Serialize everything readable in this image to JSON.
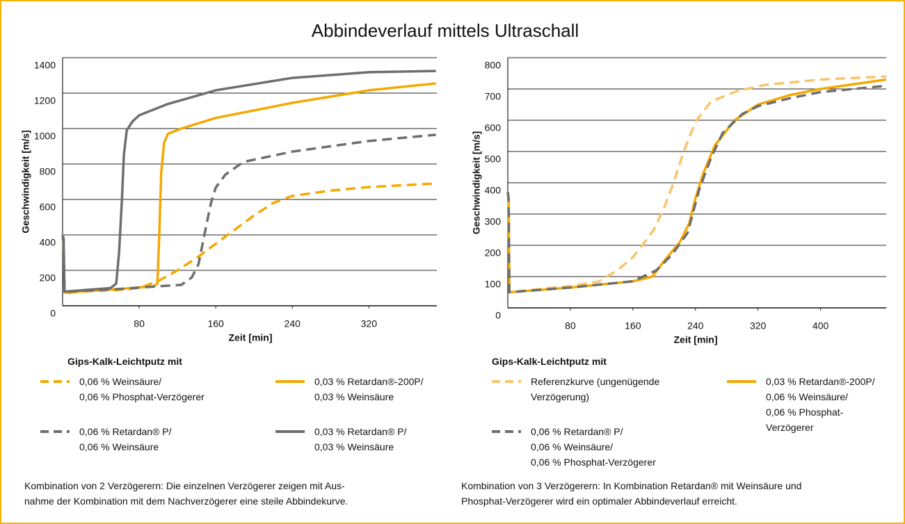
{
  "title": "Abbindeverlauf mittels Ultraschall",
  "chart_data": [
    {
      "type": "line",
      "x_label": "Zeit [min]",
      "y_label": "Geschwindigkeit [m/s]",
      "xlim": [
        0,
        391
      ],
      "ylim": [
        0,
        1400
      ],
      "xticks": [
        80,
        160,
        240,
        320
      ],
      "yticks": [
        0,
        200,
        400,
        600,
        800,
        1000,
        1200,
        1400
      ],
      "grid": true,
      "legend_title": "Gips-Kalk-Leichtputz mit",
      "series": [
        {
          "name": "0,06 % Weinsäure/\n0,06 % Phosphat-Verzögerer",
          "color": "#f5a800",
          "dashed": true,
          "x": [
            0,
            1,
            2,
            20,
            60,
            80,
            100,
            120,
            140,
            160,
            180,
            200,
            220,
            240,
            280,
            320,
            390
          ],
          "values": [
            400,
            380,
            70,
            80,
            90,
            100,
            140,
            200,
            270,
            350,
            430,
            510,
            580,
            620,
            650,
            670,
            690
          ]
        },
        {
          "name": "0,03 % Retardan®-200P/\n0,03 % Weinsäure",
          "color": "#f5a800",
          "dashed": false,
          "x": [
            0,
            1,
            2,
            60,
            95,
            99,
            101,
            103,
            106,
            110,
            124,
            160,
            240,
            320,
            390
          ],
          "values": [
            390,
            370,
            75,
            95,
            110,
            125,
            400,
            750,
            920,
            970,
            1000,
            1060,
            1145,
            1216,
            1255
          ]
        },
        {
          "name": "0,06 % Retardan® P/\n0,06 % Weinsäure",
          "color": "#6e6e6e",
          "dashed": true,
          "x": [
            0,
            1,
            2,
            60,
            100,
            124,
            135,
            142,
            150,
            155,
            160,
            170,
            189,
            240,
            320,
            390
          ],
          "values": [
            400,
            380,
            80,
            95,
            110,
            118,
            160,
            235,
            450,
            580,
            667,
            740,
            812,
            870,
            930,
            965
          ]
        },
        {
          "name": "0,03 % Retardan® P/\n0,03 % Weinsäure",
          "color": "#6e6e6e",
          "dashed": false,
          "x": [
            0,
            1,
            2,
            50,
            56,
            59,
            62,
            64,
            67,
            73,
            80,
            109,
            160,
            240,
            320,
            390
          ],
          "values": [
            380,
            360,
            80,
            100,
            125,
            300,
            600,
            850,
            990,
            1040,
            1075,
            1137,
            1216,
            1286,
            1318,
            1325
          ]
        }
      ],
      "caption": "Kombination von 2 Verzögerern: Die einzelnen Verzögerer zeigen mit Aus-\nnahme der Kombination mit dem Nachverzögerer eine steile Abbindekurve."
    },
    {
      "type": "line",
      "x_label": "Zeit [min]",
      "y_label": "Geschwindigkeit [m/s]",
      "xlim": [
        0,
        484
      ],
      "ylim": [
        0,
        800
      ],
      "xticks": [
        80,
        160,
        240,
        320,
        400
      ],
      "yticks": [
        0,
        100,
        200,
        300,
        400,
        500,
        600,
        700,
        800
      ],
      "grid": true,
      "legend_title": "Gips-Kalk-Leichtputz mit",
      "series": [
        {
          "name": "Referenzkurve (ungenügende\nVerzögerung)",
          "color": "#f8c56a",
          "dashed": true,
          "x": [
            0,
            1,
            2,
            40,
            80,
            116,
            140,
            160,
            175,
            187,
            200,
            212,
            225,
            240,
            260,
            293,
            329,
            400,
            484
          ],
          "values": [
            370,
            350,
            50,
            60,
            70,
            84,
            120,
            162,
            210,
            251,
            320,
            400,
            500,
            595,
            660,
            693,
            713,
            730,
            740
          ]
        },
        {
          "name": "0,03 % Retardan®-200P/\n0,06 % Weinsäure/\n0,06 % Phosphat-\nVerzögerer",
          "color": "#f5a800",
          "dashed": false,
          "x": [
            0,
            1,
            2,
            80,
            160,
            185,
            200,
            220,
            232,
            240,
            250,
            265,
            290,
            320,
            360,
            400,
            484
          ],
          "values": [
            370,
            350,
            50,
            65,
            85,
            100,
            150,
            210,
            270,
            350,
            430,
            520,
            600,
            650,
            680,
            700,
            730
          ]
        },
        {
          "name": "0,06 % Retardan® P/\n0,06 % Weinsäure/\n0,06 % Phosphat-Verzögerer",
          "color": "#6e6e6e",
          "dashed": true,
          "x": [
            0,
            1,
            2,
            80,
            160,
            190,
            210,
            230,
            245,
            260,
            275,
            300,
            320,
            360,
            400,
            484
          ],
          "values": [
            370,
            350,
            50,
            65,
            85,
            120,
            170,
            240,
            380,
            480,
            560,
            620,
            645,
            670,
            690,
            710
          ]
        }
      ],
      "caption": "Kombination von 3 Verzögerern: In Kombination Retardan® mit Weinsäure und\nPhosphat-Verzögerer wird ein optimaler Abbindeverlauf erreicht."
    }
  ]
}
